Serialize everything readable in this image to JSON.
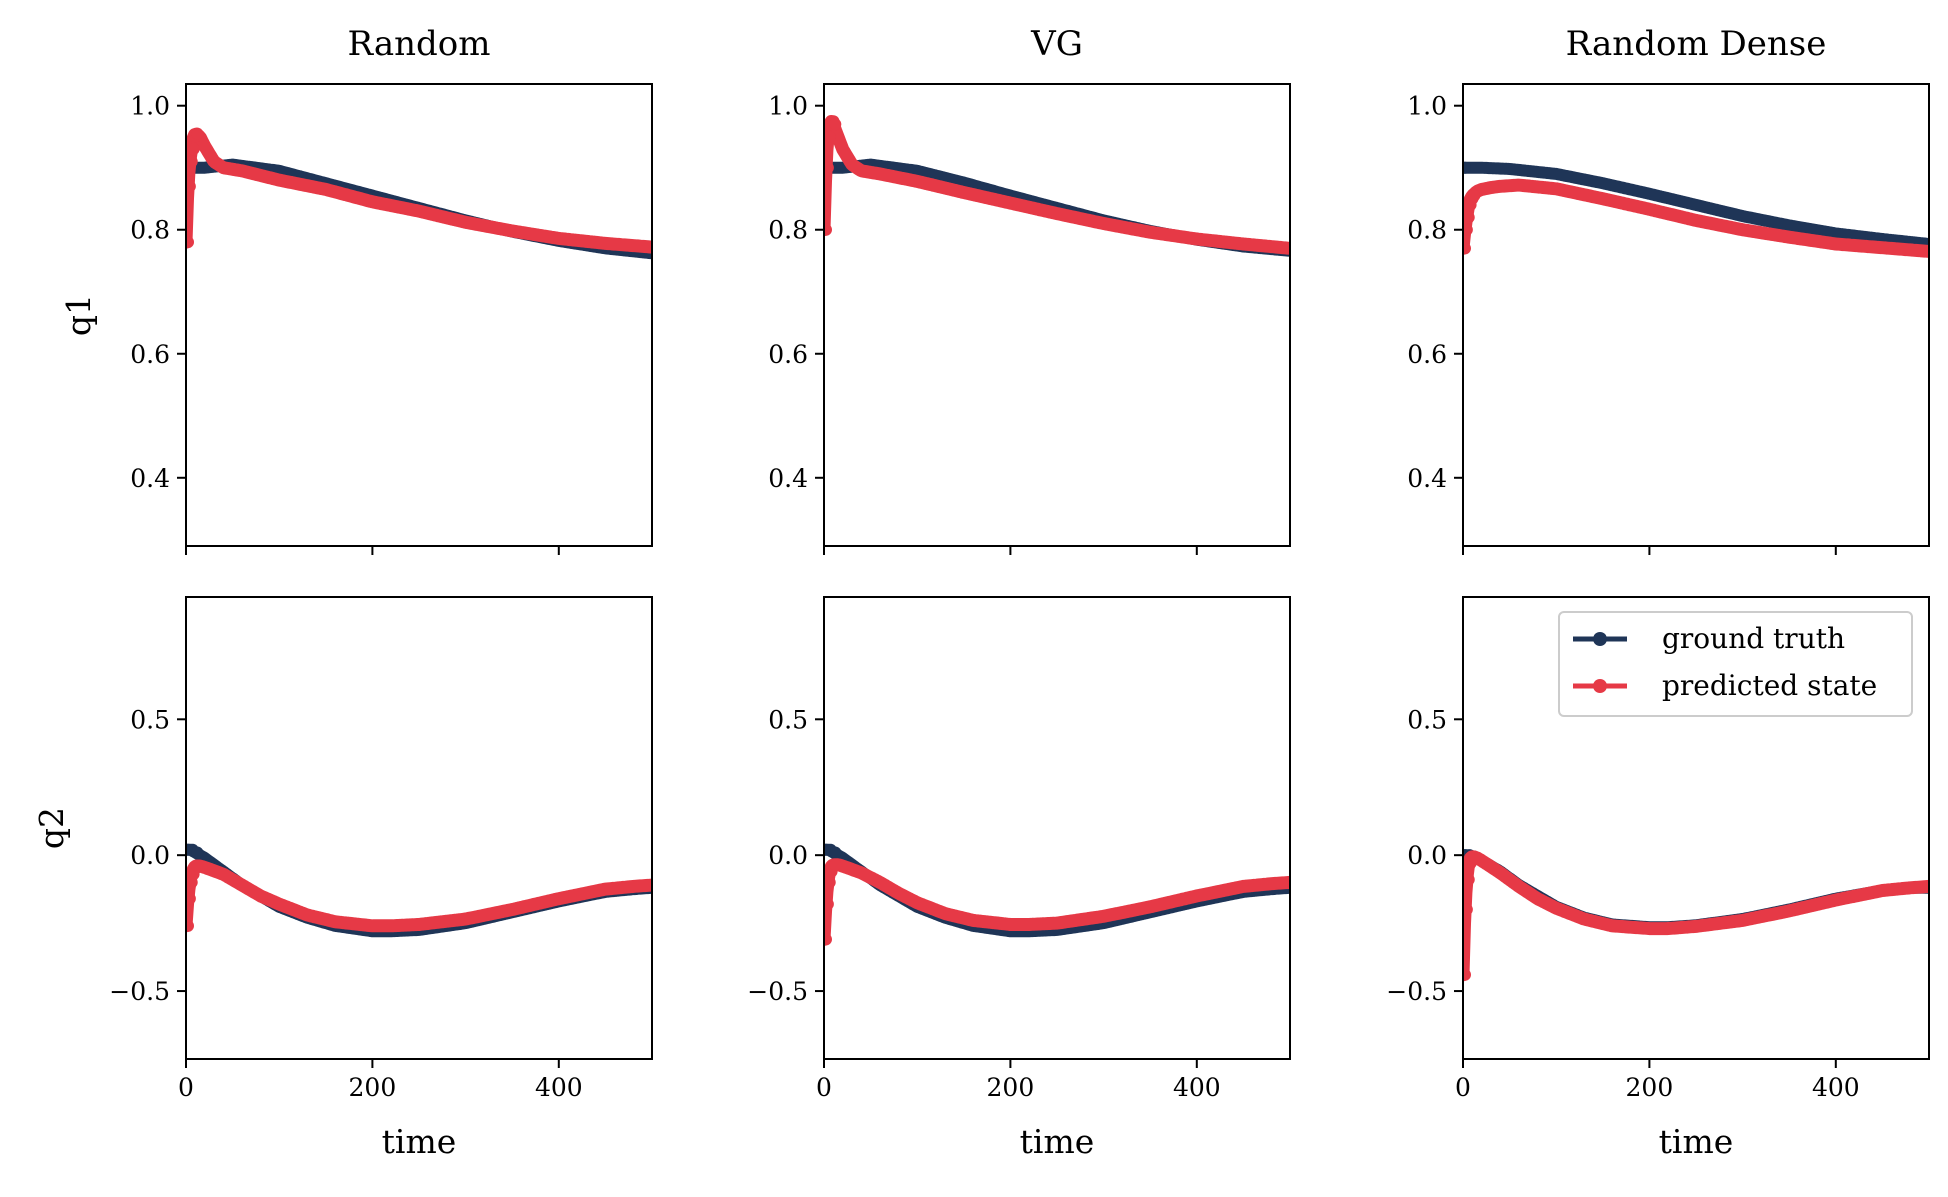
{
  "colors": {
    "ground_truth": "#1f3557",
    "predicted": "#e63946"
  },
  "chart_data": {
    "type": "line",
    "layout": "2x3 grid of subplots",
    "column_titles": [
      "Random",
      "VG",
      "Random Dense"
    ],
    "row_ylabels": [
      "q1",
      "q2"
    ],
    "xlabel": "time",
    "xlim": [
      0,
      500
    ],
    "x_ticks": [
      "0",
      "200",
      "400"
    ],
    "rows": [
      {
        "ylabel": "q1",
        "ylim": [
          0.29,
          1.035
        ],
        "y_ticks": [
          0.4,
          0.6,
          0.8,
          1.0
        ],
        "y_tick_labels": [
          "0.4",
          "0.6",
          "0.8",
          "1.0"
        ]
      },
      {
        "ylabel": "q2",
        "ylim": [
          -0.75,
          0.95
        ],
        "y_ticks": [
          -0.5,
          0.0,
          0.5
        ],
        "y_tick_labels": [
          "−0.5",
          "0.0",
          "0.5"
        ]
      }
    ],
    "legend": {
      "placement": "upper-right of bottom-right subplot",
      "entries": [
        "ground truth",
        "predicted state"
      ]
    },
    "panels": [
      {
        "title": "Random",
        "row": 0,
        "col": 0,
        "series": [
          {
            "name": "ground truth",
            "x": [
              0,
              5,
              20,
              50,
              100,
              150,
              200,
              250,
              300,
              350,
              400,
              450,
              500
            ],
            "y": [
              0.9,
              0.9,
              0.9,
              0.905,
              0.895,
              0.875,
              0.855,
              0.835,
              0.815,
              0.797,
              0.782,
              0.77,
              0.762
            ]
          },
          {
            "name": "predicted state",
            "x": [
              0,
              2,
              4,
              6,
              8,
              10,
              15,
              20,
              30,
              40,
              60,
              100,
              150,
              200,
              250,
              300,
              350,
              400,
              450,
              500
            ],
            "y": [
              0.78,
              0.87,
              0.91,
              0.93,
              0.95,
              0.955,
              0.95,
              0.935,
              0.91,
              0.9,
              0.895,
              0.88,
              0.865,
              0.845,
              0.83,
              0.812,
              0.798,
              0.786,
              0.778,
              0.772
            ]
          }
        ]
      },
      {
        "title": "VG",
        "row": 0,
        "col": 1,
        "series": [
          {
            "name": "ground truth",
            "x": [
              0,
              5,
              20,
              50,
              100,
              150,
              200,
              250,
              300,
              350,
              400,
              450,
              500
            ],
            "y": [
              0.9,
              0.9,
              0.9,
              0.905,
              0.895,
              0.876,
              0.855,
              0.835,
              0.815,
              0.798,
              0.784,
              0.773,
              0.766
            ]
          },
          {
            "name": "predicted state",
            "x": [
              0,
              2,
              4,
              6,
              8,
              10,
              15,
              20,
              30,
              40,
              60,
              100,
              150,
              200,
              250,
              300,
              350,
              400,
              450,
              500
            ],
            "y": [
              0.8,
              0.9,
              0.95,
              0.97,
              0.975,
              0.97,
              0.95,
              0.93,
              0.905,
              0.895,
              0.89,
              0.878,
              0.86,
              0.843,
              0.826,
              0.81,
              0.796,
              0.785,
              0.777,
              0.77
            ]
          }
        ]
      },
      {
        "title": "Random Dense",
        "row": 0,
        "col": 2,
        "series": [
          {
            "name": "ground truth",
            "x": [
              0,
              20,
              50,
              100,
              150,
              200,
              250,
              300,
              350,
              400,
              450,
              500
            ],
            "y": [
              0.9,
              0.9,
              0.898,
              0.89,
              0.875,
              0.858,
              0.84,
              0.822,
              0.807,
              0.794,
              0.785,
              0.777
            ]
          },
          {
            "name": "predicted state",
            "x": [
              0,
              2,
              4,
              6,
              8,
              10,
              15,
              20,
              30,
              40,
              60,
              100,
              150,
              200,
              250,
              300,
              350,
              400,
              450,
              500
            ],
            "y": [
              0.77,
              0.8,
              0.82,
              0.84,
              0.85,
              0.855,
              0.862,
              0.865,
              0.868,
              0.87,
              0.872,
              0.866,
              0.85,
              0.833,
              0.815,
              0.8,
              0.788,
              0.777,
              0.771,
              0.765
            ]
          }
        ]
      },
      {
        "title": "",
        "row": 1,
        "col": 0,
        "series": [
          {
            "name": "ground truth",
            "x": [
              0,
              5,
              10,
              20,
              40,
              60,
              80,
              100,
              130,
              160,
              200,
              220,
              250,
              300,
              350,
              400,
              450,
              480,
              500
            ],
            "y": [
              0.02,
              0.02,
              0.01,
              -0.01,
              -0.06,
              -0.11,
              -0.15,
              -0.19,
              -0.23,
              -0.26,
              -0.28,
              -0.28,
              -0.275,
              -0.25,
              -0.21,
              -0.17,
              -0.135,
              -0.125,
              -0.12
            ]
          },
          {
            "name": "predicted state",
            "x": [
              0,
              2,
              4,
              6,
              8,
              10,
              15,
              20,
              40,
              60,
              80,
              100,
              130,
              160,
              200,
              220,
              250,
              300,
              350,
              400,
              450,
              480,
              500
            ],
            "y": [
              -0.26,
              -0.16,
              -0.1,
              -0.07,
              -0.05,
              -0.04,
              -0.04,
              -0.045,
              -0.07,
              -0.11,
              -0.15,
              -0.18,
              -0.22,
              -0.245,
              -0.26,
              -0.26,
              -0.255,
              -0.235,
              -0.2,
              -0.16,
              -0.125,
              -0.115,
              -0.11
            ]
          }
        ]
      },
      {
        "title": "",
        "row": 1,
        "col": 1,
        "series": [
          {
            "name": "ground truth",
            "x": [
              0,
              5,
              10,
              20,
              40,
              60,
              80,
              100,
              130,
              160,
              200,
              220,
              250,
              300,
              350,
              400,
              450,
              480,
              500
            ],
            "y": [
              0.02,
              0.02,
              0.01,
              -0.01,
              -0.06,
              -0.11,
              -0.15,
              -0.19,
              -0.23,
              -0.26,
              -0.28,
              -0.28,
              -0.275,
              -0.25,
              -0.21,
              -0.17,
              -0.135,
              -0.125,
              -0.12
            ]
          },
          {
            "name": "predicted state",
            "x": [
              0,
              2,
              4,
              6,
              8,
              10,
              15,
              20,
              40,
              60,
              80,
              100,
              130,
              160,
              200,
              220,
              250,
              300,
              350,
              400,
              450,
              480,
              500
            ],
            "y": [
              -0.31,
              -0.18,
              -0.1,
              -0.06,
              -0.04,
              -0.035,
              -0.035,
              -0.04,
              -0.065,
              -0.1,
              -0.14,
              -0.175,
              -0.215,
              -0.24,
              -0.255,
              -0.255,
              -0.25,
              -0.225,
              -0.19,
              -0.15,
              -0.115,
              -0.105,
              -0.1
            ]
          }
        ]
      },
      {
        "title": "",
        "row": 1,
        "col": 2,
        "series": [
          {
            "name": "ground truth",
            "x": [
              0,
              5,
              10,
              20,
              40,
              60,
              80,
              100,
              130,
              160,
              200,
              220,
              250,
              300,
              350,
              400,
              450,
              480,
              500
            ],
            "y": [
              0.0,
              0.0,
              -0.005,
              -0.02,
              -0.06,
              -0.11,
              -0.15,
              -0.19,
              -0.23,
              -0.255,
              -0.265,
              -0.265,
              -0.258,
              -0.235,
              -0.2,
              -0.16,
              -0.13,
              -0.12,
              -0.12
            ]
          },
          {
            "name": "predicted state",
            "x": [
              0,
              2,
              4,
              6,
              8,
              10,
              15,
              20,
              40,
              60,
              80,
              100,
              130,
              160,
              200,
              220,
              250,
              300,
              350,
              400,
              450,
              480,
              500
            ],
            "y": [
              -0.44,
              -0.2,
              -0.09,
              -0.03,
              -0.01,
              -0.005,
              -0.01,
              -0.02,
              -0.065,
              -0.115,
              -0.16,
              -0.195,
              -0.235,
              -0.26,
              -0.27,
              -0.27,
              -0.262,
              -0.24,
              -0.205,
              -0.165,
              -0.13,
              -0.12,
              -0.115
            ]
          }
        ]
      }
    ]
  }
}
